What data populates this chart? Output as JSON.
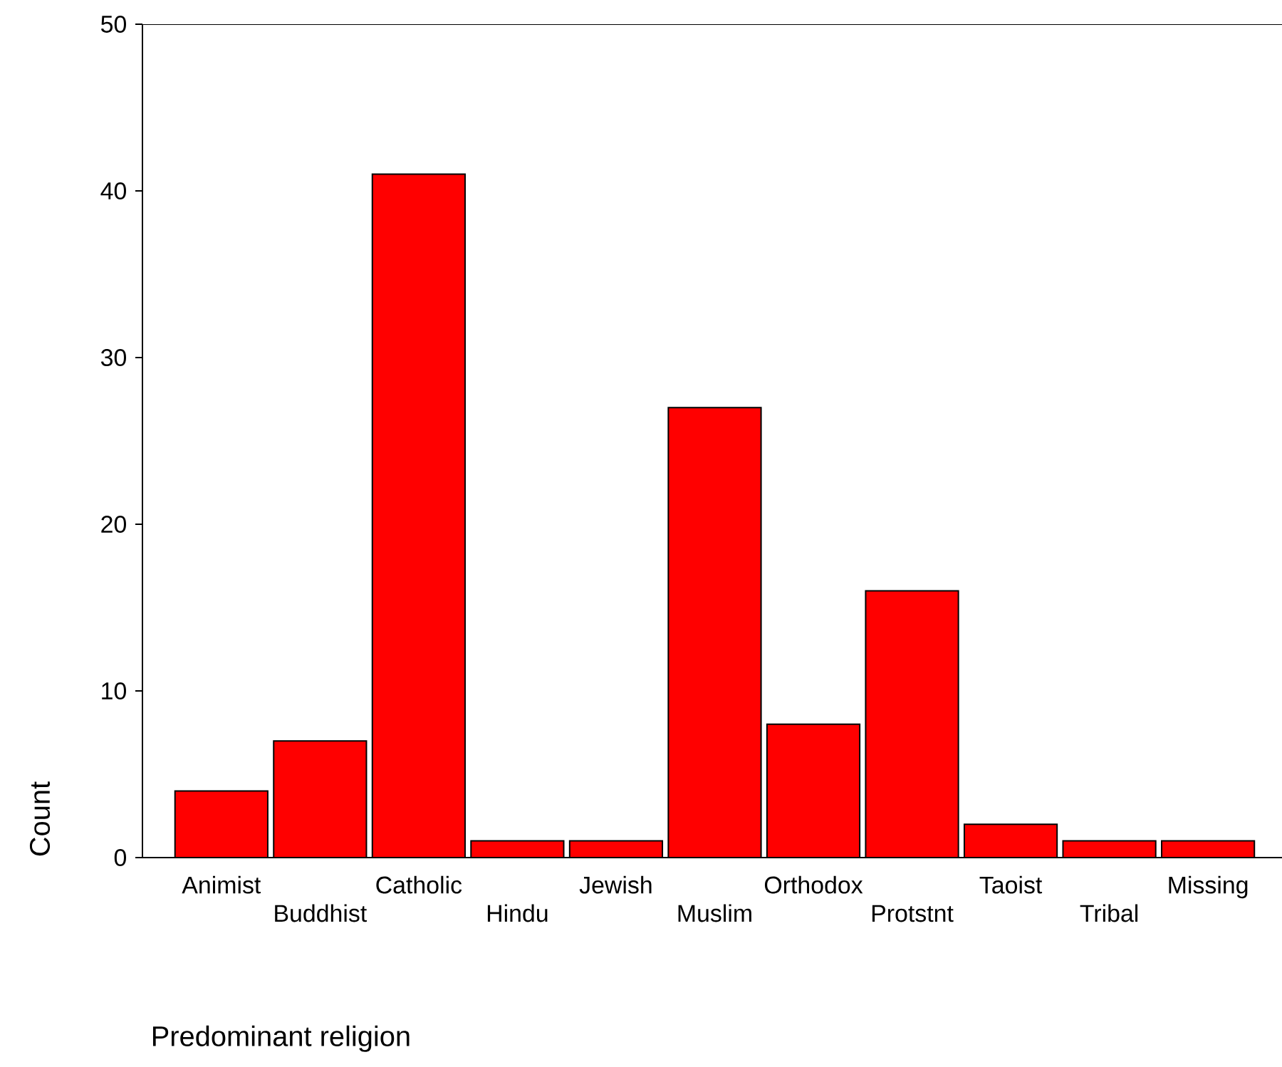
{
  "chart_data": {
    "type": "bar",
    "xlabel": "Predominant religion",
    "ylabel": "Count",
    "categories": [
      "Animist",
      "Buddhist",
      "Catholic",
      "Hindu",
      "Jewish",
      "Muslim",
      "Orthodox",
      "Protstnt",
      "Taoist",
      "Tribal",
      "Missing"
    ],
    "values": [
      4,
      7,
      41,
      1,
      1,
      27,
      8,
      16,
      2,
      1,
      1
    ],
    "color": "#ff0000",
    "ylim": [
      0,
      50
    ],
    "yticks": [
      0,
      10,
      20,
      30,
      40,
      50
    ],
    "grid": false
  }
}
